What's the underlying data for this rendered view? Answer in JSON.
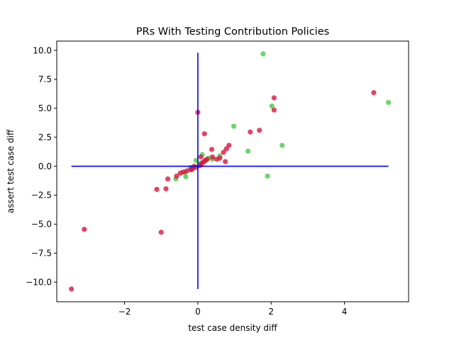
{
  "chart_data": {
    "type": "scatter",
    "title": "PRs With Testing Contribution Policies",
    "xlabel": "test case density diff",
    "ylabel": "assert test case diff",
    "xlim": [
      -3.85,
      5.75
    ],
    "ylim": [
      -11.7,
      10.8
    ],
    "xticks": [
      -2,
      0,
      2,
      4
    ],
    "xtick_labels": [
      "−2",
      "0",
      "2",
      "4"
    ],
    "yticks": [
      -10,
      -7.5,
      -5,
      -2.5,
      0,
      2.5,
      5,
      7.5,
      10
    ],
    "ytick_labels": [
      "−10.0",
      "−7.5",
      "−5.0",
      "−2.5",
      "0.0",
      "2.5",
      "5.0",
      "7.5",
      "10.0"
    ],
    "grid": false,
    "reference_lines": {
      "color": "#0000ff",
      "horizontal": {
        "y": 0,
        "x_from": -3.45,
        "x_to": 5.2
      },
      "vertical": {
        "x": 0,
        "y_from": -10.6,
        "y_to": 9.8
      }
    },
    "series": [
      {
        "color": "#44cc44",
        "points": [
          [
            1.78,
            9.7
          ],
          [
            5.2,
            5.5
          ],
          [
            2.02,
            5.2
          ],
          [
            0.98,
            3.45
          ],
          [
            2.3,
            1.8
          ],
          [
            1.37,
            1.3
          ],
          [
            1.9,
            -0.85
          ],
          [
            0.12,
            1.0
          ],
          [
            0.3,
            0.7
          ],
          [
            0.6,
            0.9
          ],
          [
            0.22,
            0.5
          ],
          [
            0.1,
            0.3
          ],
          [
            -0.05,
            0.5
          ],
          [
            0.05,
            0.2
          ],
          [
            -0.2,
            -0.1
          ],
          [
            -0.35,
            -0.55
          ],
          [
            -0.33,
            -0.9
          ],
          [
            -0.6,
            -1.1
          ],
          [
            -0.15,
            -0.3
          ],
          [
            0.4,
            0.6
          ]
        ]
      },
      {
        "color": "#dc143c",
        "points": [
          [
            -3.45,
            -10.6
          ],
          [
            -3.1,
            -5.45
          ],
          [
            -1.0,
            -5.7
          ],
          [
            -1.12,
            -2.0
          ],
          [
            -0.87,
            -1.95
          ],
          [
            -0.82,
            -1.1
          ],
          [
            -0.58,
            -0.85
          ],
          [
            -0.48,
            -0.6
          ],
          [
            -0.4,
            -0.5
          ],
          [
            -0.3,
            -0.4
          ],
          [
            -0.2,
            -0.3
          ],
          [
            -0.15,
            -0.2
          ],
          [
            -0.05,
            -0.1
          ],
          [
            0.0,
            4.65
          ],
          [
            0.18,
            2.8
          ],
          [
            0.05,
            0.05
          ],
          [
            0.1,
            0.2
          ],
          [
            0.15,
            0.35
          ],
          [
            0.2,
            0.5
          ],
          [
            0.25,
            0.6
          ],
          [
            0.38,
            1.45
          ],
          [
            0.4,
            0.8
          ],
          [
            0.52,
            0.6
          ],
          [
            0.6,
            0.7
          ],
          [
            0.7,
            1.2
          ],
          [
            0.75,
            0.4
          ],
          [
            0.78,
            1.5
          ],
          [
            0.85,
            1.8
          ],
          [
            1.43,
            2.95
          ],
          [
            1.68,
            3.1
          ],
          [
            2.08,
            5.9
          ],
          [
            2.08,
            4.85
          ],
          [
            4.8,
            6.35
          ],
          [
            0.08,
            0.8
          ],
          [
            -0.1,
            0.0
          ]
        ]
      }
    ]
  }
}
